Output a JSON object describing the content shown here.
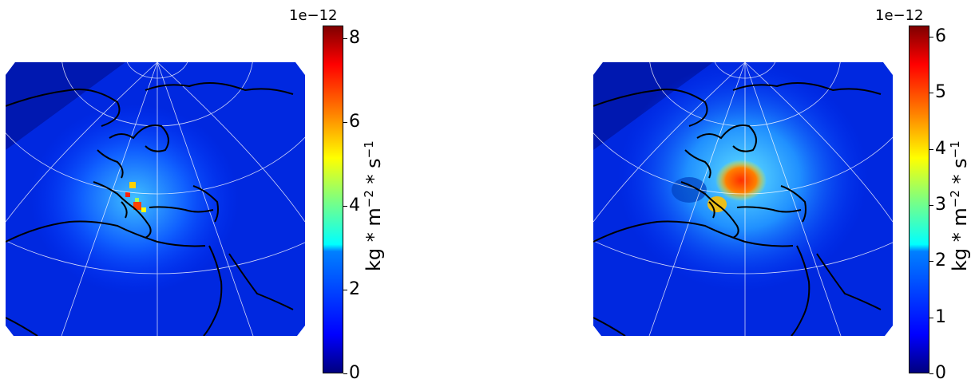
{
  "panels": [
    {
      "name": "left",
      "colorbar": {
        "exponent_label": "1e−12",
        "ticks": [
          "0",
          "2",
          "4",
          "6",
          "8"
        ],
        "max": 8.3,
        "label_base": "kg * m",
        "label_exp1": "−2",
        "label_mid": " * s",
        "label_exp2": "−1"
      },
      "hotspots": [
        {
          "lon": 14,
          "lat": 45,
          "strength": "high"
        },
        {
          "lon": 11,
          "lat": 47,
          "strength": "medium"
        }
      ]
    },
    {
      "name": "right",
      "colorbar": {
        "exponent_label": "1e−12",
        "ticks": [
          "0",
          "1",
          "2",
          "3",
          "4",
          "5",
          "6"
        ],
        "max": 6.2,
        "label_base": "kg * m",
        "label_exp1": "−2",
        "label_mid": " * s",
        "label_exp2": "−1"
      },
      "hotspots": [
        {
          "lon": 25,
          "lat": 50,
          "strength": "high"
        },
        {
          "lon": 15,
          "lat": 45,
          "strength": "medium"
        }
      ]
    }
  ],
  "colormap": "jet",
  "colors": {
    "low": "#00007f",
    "high": "#7f0000",
    "coastline": "#000000",
    "grid": "#ffffff"
  }
}
